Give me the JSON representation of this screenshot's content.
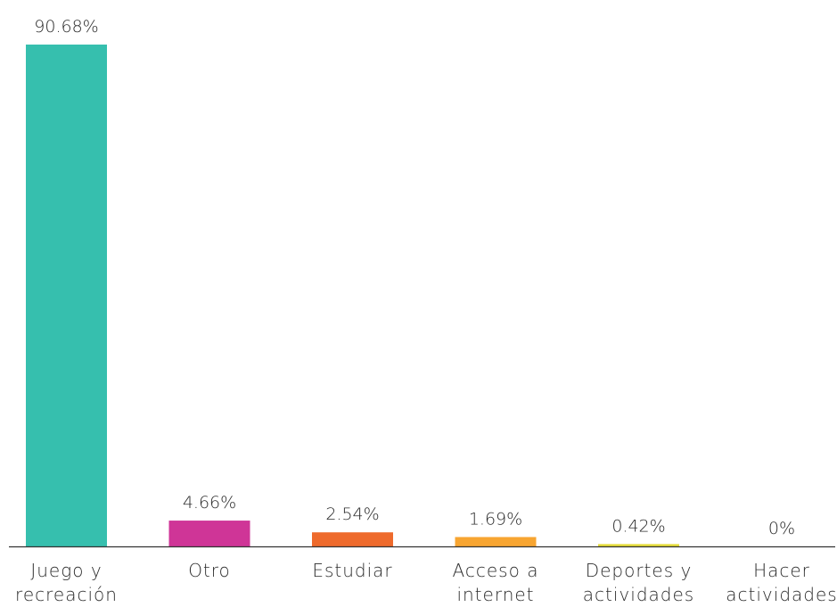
{
  "chart_data": {
    "type": "bar",
    "categories": [
      [
        "Juego y",
        "recreación"
      ],
      [
        "Otro"
      ],
      [
        "Estudiar"
      ],
      [
        "Acceso a",
        "internet"
      ],
      [
        "Deportes y",
        "actividades"
      ],
      [
        "Hacer",
        "actividades"
      ]
    ],
    "values": [
      90.68,
      4.66,
      2.54,
      1.69,
      0.42,
      0
    ],
    "value_labels": [
      "90.68%",
      "4.66%",
      "2.54%",
      "1.69%",
      "0.42%",
      "0%"
    ],
    "colors": [
      "#36bfae",
      "#cf3597",
      "#ee6a2c",
      "#f7a531",
      "#e5dc3c",
      "#e5dc3c"
    ],
    "title": "",
    "xlabel": "",
    "ylabel": "",
    "ylim": [
      0,
      90.68
    ],
    "grid": false,
    "legend": "none"
  }
}
